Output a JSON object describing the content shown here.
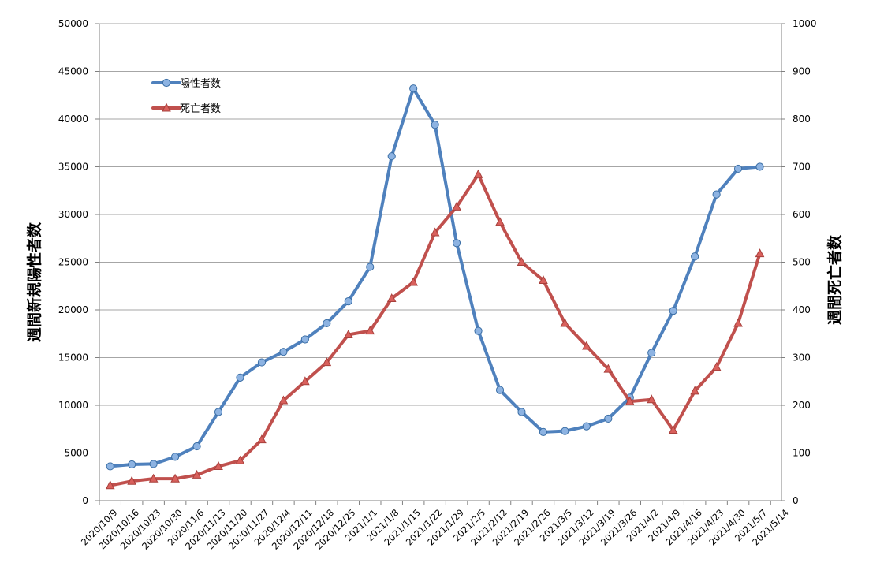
{
  "chart_data": {
    "type": "line",
    "categories": [
      "2020/10/9",
      "2020/10/16",
      "2020/10/23",
      "2020/10/30",
      "2020/11/6",
      "2020/11/13",
      "2020/11/20",
      "2020/11/27",
      "2020/12/4",
      "2020/12/11",
      "2020/12/18",
      "2020/12/25",
      "2021/1/1",
      "2021/1/8",
      "2021/1/15",
      "2021/1/22",
      "2021/1/29",
      "2021/2/5",
      "2021/2/12",
      "2021/2/19",
      "2021/2/26",
      "2021/3/5",
      "2021/3/12",
      "2021/3/19",
      "2021/3/26",
      "2021/4/2",
      "2021/4/9",
      "2021/4/16",
      "2021/4/23",
      "2021/4/30",
      "2021/5/7",
      "2021/5/14"
    ],
    "series": [
      {
        "name": "陽性者数",
        "axis": "left",
        "color": "#4f81bd",
        "marker": "circle",
        "values": [
          3600,
          3800,
          3850,
          4600,
          5700,
          9300,
          12900,
          14500,
          15600,
          16900,
          18600,
          20900,
          24500,
          36100,
          43200,
          39400,
          27000,
          17800,
          11600,
          9300,
          7200,
          7300,
          7800,
          8600,
          10800,
          15500,
          19900,
          25600,
          32100,
          34800,
          35000,
          null
        ]
      },
      {
        "name": "死亡者数",
        "axis": "right",
        "color": "#c0504d",
        "marker": "triangle",
        "values": [
          32,
          41,
          46,
          46,
          54,
          72,
          84,
          128,
          210,
          250,
          290,
          348,
          356,
          424,
          458,
          562,
          616,
          684,
          584,
          500,
          462,
          372,
          324,
          276,
          208,
          212,
          148,
          230,
          280,
          372,
          518,
          null
        ]
      }
    ],
    "ylabel": "週間新規陽性者数",
    "y2label": "週間死亡者数",
    "ylim": [
      0,
      50000
    ],
    "y2lim": [
      0,
      1000
    ],
    "yticks": [
      "0",
      "5000",
      "10000",
      "15000",
      "20000",
      "25000",
      "30000",
      "35000",
      "40000",
      "45000",
      "50000"
    ],
    "y2ticks": [
      "0",
      "100",
      "200",
      "300",
      "400",
      "500",
      "600",
      "700",
      "800",
      "900",
      "1000"
    ],
    "grid": true,
    "legend_position": "top-left"
  }
}
